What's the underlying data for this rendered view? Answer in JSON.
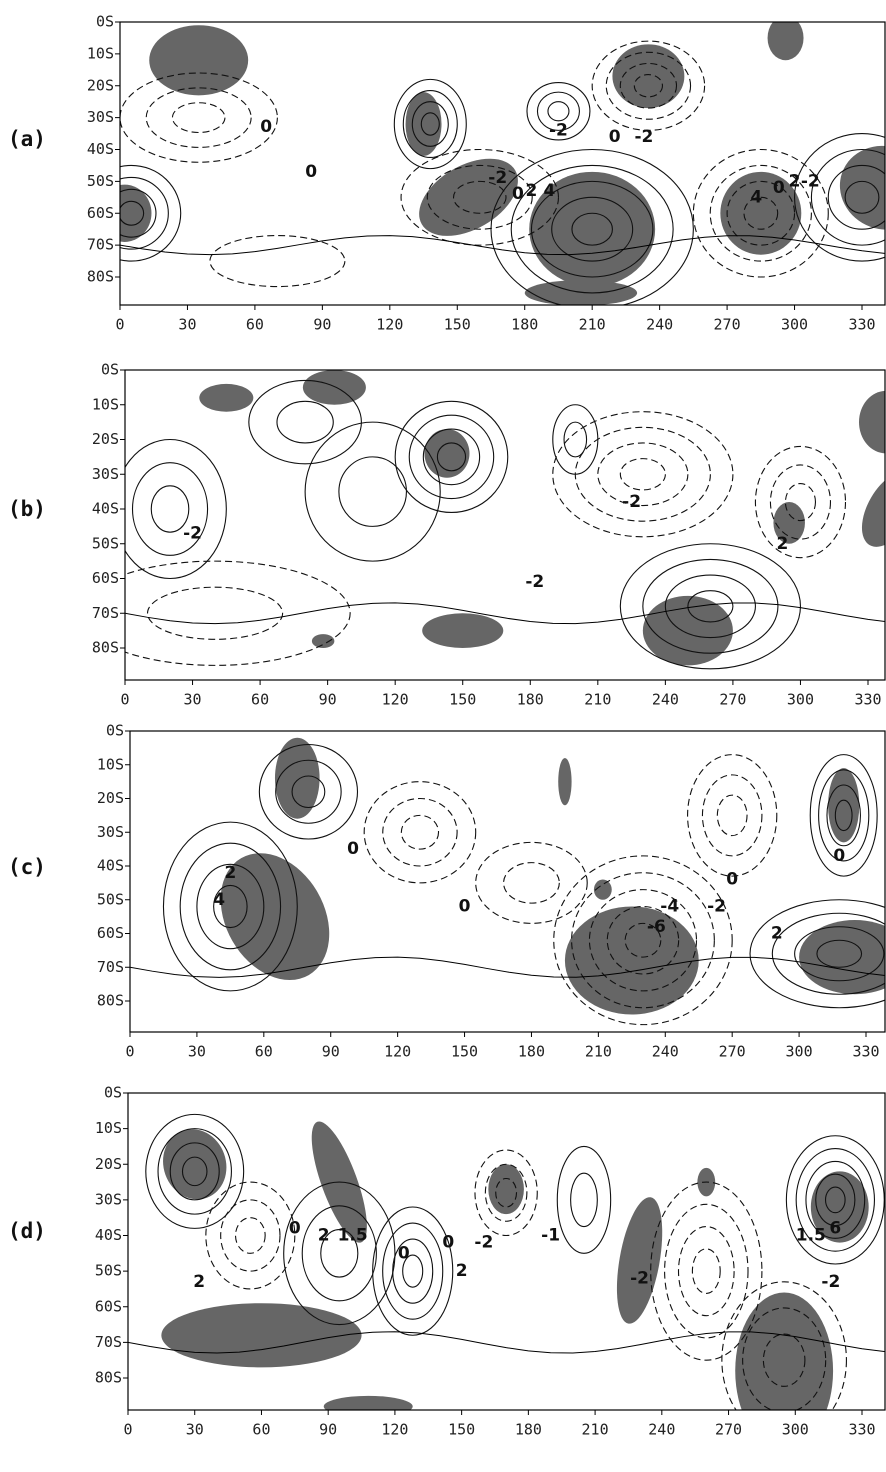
{
  "axes": {
    "xticks": [
      0,
      30,
      60,
      90,
      120,
      150,
      180,
      210,
      240,
      270,
      300,
      330
    ],
    "yticks": [
      "0S",
      "10S",
      "20S",
      "30S",
      "40S",
      "50S",
      "60S",
      "70S",
      "80S"
    ]
  },
  "panels": [
    {
      "label": "(a)",
      "contour_labels": [
        "0",
        "0",
        "-2",
        "0",
        "2",
        "4",
        "-2",
        "0",
        "-2",
        "4",
        "0",
        "2",
        "-2"
      ]
    },
    {
      "label": "(b)",
      "contour_labels": [
        "-2",
        "-2",
        "-2",
        "2"
      ]
    },
    {
      "label": "(c)",
      "contour_labels": [
        "0",
        "2",
        "4",
        "0",
        "-4",
        "-6",
        "-2",
        "0",
        "2",
        "0"
      ]
    },
    {
      "label": "(d)",
      "contour_labels": [
        "0",
        "2",
        "1.5",
        "0",
        "0",
        "-2",
        "2",
        "-1",
        "-2",
        "1.5",
        "6",
        "-2",
        "2"
      ]
    }
  ]
}
